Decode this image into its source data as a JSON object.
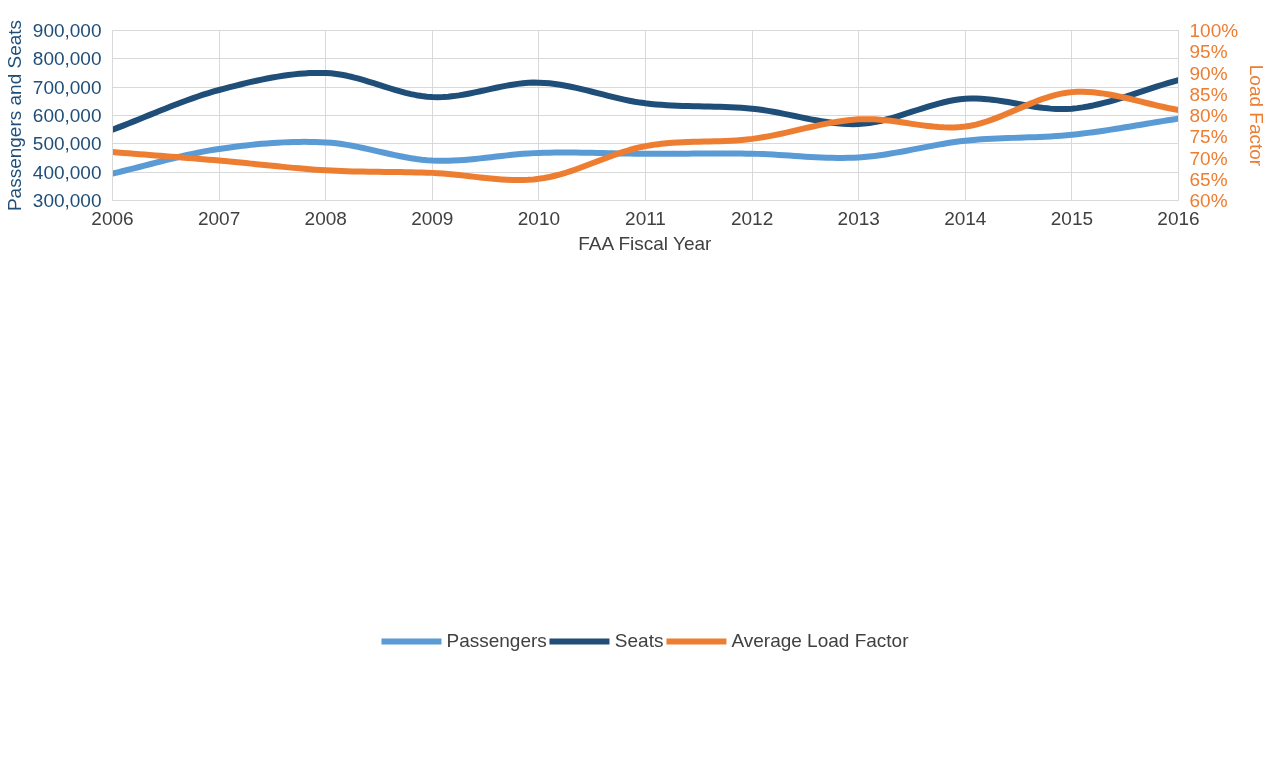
{
  "chart_data": {
    "type": "line",
    "xlabel": "FAA Fiscal Year",
    "ylabel": "Passengers and Seats",
    "y2label": "Load Factor",
    "x": [
      2006,
      2007,
      2008,
      2009,
      2010,
      2011,
      2012,
      2013,
      2014,
      2015,
      2016
    ],
    "series": [
      {
        "name": "Passengers",
        "color": "#5b9bd5",
        "values": [
          395000,
          482000,
          505000,
          441000,
          468000,
          465000,
          465000,
          452000,
          511000,
          532000,
          589000
        ]
      },
      {
        "name": "Seats",
        "color": "#1f4e79",
        "values": [
          550000,
          690000,
          750000,
          665000,
          716000,
          643000,
          624000,
          570000,
          659000,
          624000,
          725000
        ]
      },
      {
        "name": "Average Load Factor",
        "color": "#ed7d31",
        "axis": "y2",
        "values": [
          71.4,
          69.4,
          67.1,
          66.5,
          65.1,
          72.8,
          74.5,
          79.1,
          77.4,
          85.5,
          81.3
        ]
      }
    ],
    "xlim": [
      2006,
      2016
    ],
    "xticks": [
      2006,
      2007,
      2008,
      2009,
      2010,
      2011,
      2012,
      2013,
      2014,
      2015,
      2016
    ],
    "ylim": [
      300000,
      900000
    ],
    "yticks": [
      {
        "value": 300000,
        "label": "300,000"
      },
      {
        "value": 400000,
        "label": "400,000"
      },
      {
        "value": 500000,
        "label": "500,000"
      },
      {
        "value": 600000,
        "label": "600,000"
      },
      {
        "value": 700000,
        "label": "700,000"
      },
      {
        "value": 800000,
        "label": "800,000"
      },
      {
        "value": 900000,
        "label": "900,000"
      }
    ],
    "y2lim": [
      60,
      100
    ],
    "y2ticks": [
      {
        "value": 60,
        "label": "60%"
      },
      {
        "value": 65,
        "label": "65%"
      },
      {
        "value": 70,
        "label": "70%"
      },
      {
        "value": 75,
        "label": "75%"
      },
      {
        "value": 80,
        "label": "80%"
      },
      {
        "value": 85,
        "label": "85%"
      },
      {
        "value": 90,
        "label": "90%"
      },
      {
        "value": 95,
        "label": "95%"
      },
      {
        "value": 100,
        "label": "100%"
      }
    ],
    "grid": true,
    "legend": "bottom",
    "marker": "none",
    "line_style": "solid"
  }
}
